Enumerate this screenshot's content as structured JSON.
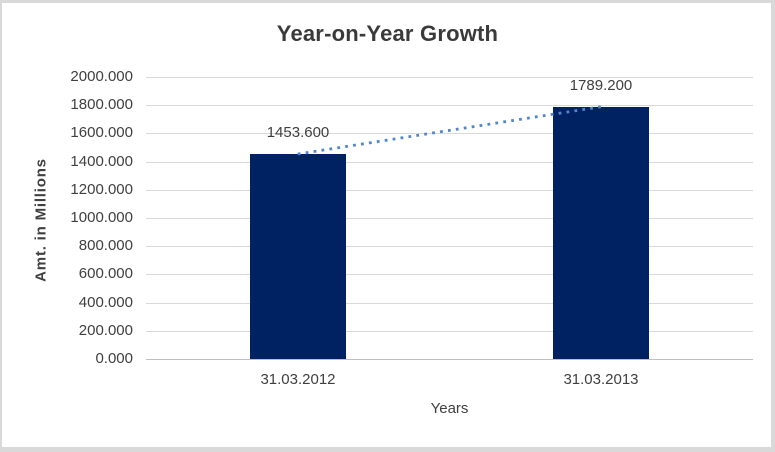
{
  "chart": {
    "title": "Year-on-Year Growth",
    "y_axis_title": "Amt. in Millions",
    "x_axis_title": "Years"
  },
  "chart_data": {
    "type": "bar",
    "title": "Year-on-Year Growth",
    "xlabel": "Years",
    "ylabel": "Amt. in Millions",
    "categories": [
      "31.03.2012",
      "31.03.2013"
    ],
    "values": [
      1453.6,
      1789.2
    ],
    "data_labels": [
      "1453.600",
      "1789.200"
    ],
    "y_tick_labels": [
      "0.000",
      "200.000",
      "400.000",
      "600.000",
      "800.000",
      "1000.000",
      "1200.000",
      "1400.000",
      "1600.000",
      "1800.000",
      "2000.000"
    ],
    "ylim": [
      0,
      2000
    ],
    "y_tick_step": 200,
    "grid": true,
    "legend": "none",
    "trendline": {
      "style": "dotted",
      "connects": [
        "31.03.2012",
        "31.03.2013"
      ]
    },
    "colors": {
      "bar": "#002263",
      "trendline": "#4f87ce",
      "gridline": "#d9d9d9",
      "axis_line": "#bfbfbf",
      "text": "#404040",
      "title_text": "#3a3a3a",
      "frame_border": "#d9d9d9",
      "background": "#ffffff"
    }
  }
}
